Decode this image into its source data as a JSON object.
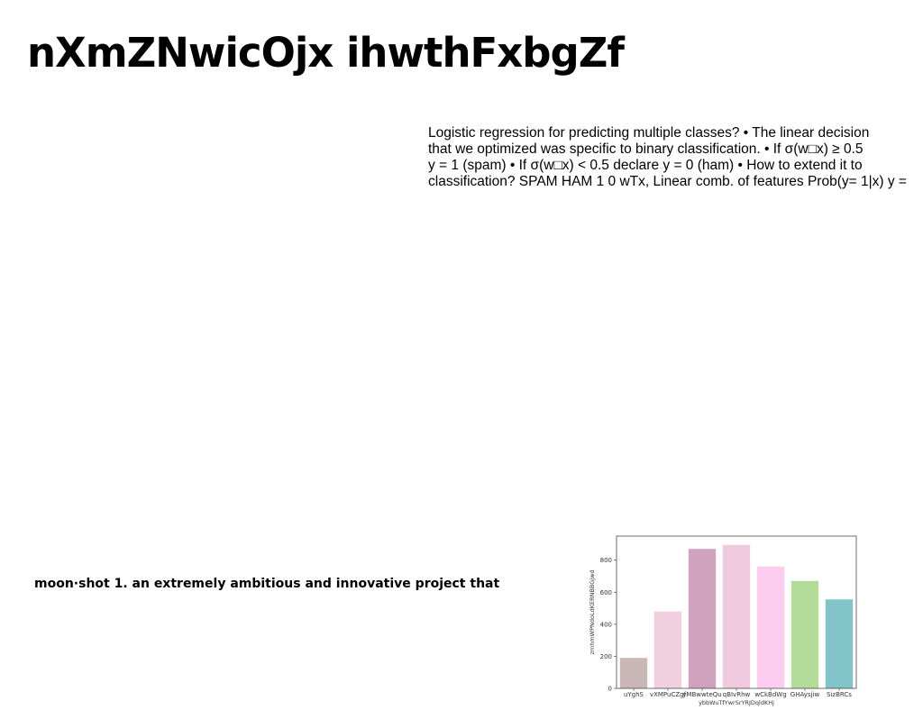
{
  "title": "nXmZNwicOjx ihwthFxbgZf",
  "body_lines": [
    "Logistic regression for predicting multiple classes? • The linear decision",
    "that we optimized was specific to binary classification. • If σ(w□x) ≥ 0.5",
    "y = 1 (spam) • If σ(w□x) < 0.5 declare y = 0 (ham) • How to extend it to",
    "classification? SPAM HAM 1 0 wTx, Linear comb. of features Prob(y= 1|x) y ="
  ],
  "caption": "moon·shot 1. an extremely ambitious and innovative project that",
  "chart_data": {
    "type": "bar",
    "categories": [
      "uYghS",
      "vXMPuCZgf",
      "yMBwwteQu",
      "qBIvRhw",
      "wCkBdWg",
      "GHAysjiw",
      "SizBRCs"
    ],
    "values": [
      190,
      480,
      870,
      895,
      760,
      670,
      555
    ],
    "colors": [
      "#c9b6b6",
      "#f0cfdf",
      "#cfa3bd",
      "#f0cade",
      "#fccdee",
      "#b3dc9b",
      "#83c3ca"
    ],
    "xlabel": "ybbWuTfYwrSrYRJDqldKHj",
    "ylabel": "zmhmWPNdoLdKERNBBGjwd",
    "yticks": [
      0,
      200,
      400,
      600,
      800
    ],
    "ylim": [
      0,
      950
    ],
    "grid": false
  }
}
